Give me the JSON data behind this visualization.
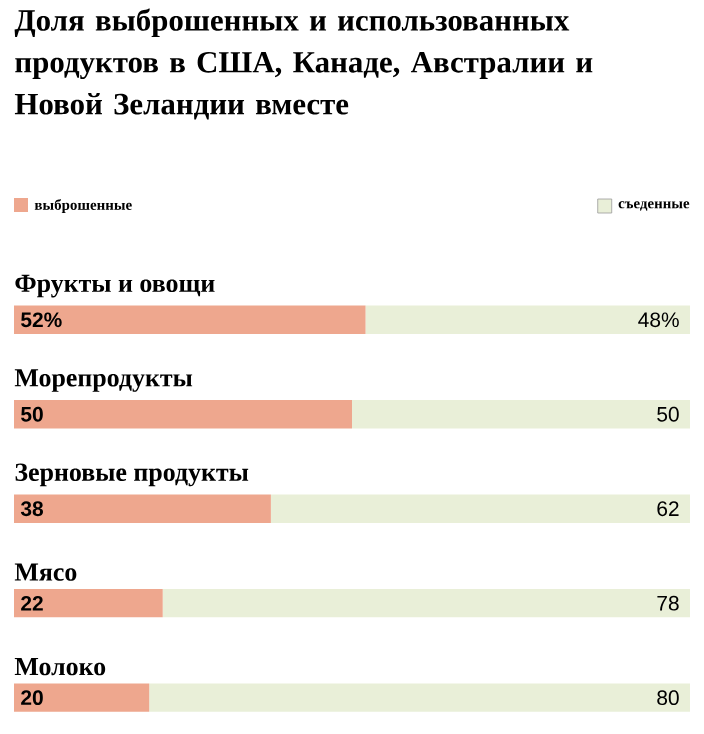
{
  "chart_data": {
    "type": "bar",
    "orientation": "horizontal",
    "stacked": true,
    "title": "Доля выброшенных и использованных продуктов в США, Канаде, Австралии и Новой Зеландии вместе",
    "legend": "top",
    "categories": [
      "Фрукты и овощи",
      "Морепродукты",
      "Зерновые продукты",
      "Мясо",
      "Молоко"
    ],
    "series": [
      {
        "name": "выброшенные",
        "color": "#eea78e",
        "values": [
          52,
          50,
          38,
          22,
          20
        ],
        "value_labels": [
          "52%",
          "50",
          "38",
          "22",
          "20"
        ]
      },
      {
        "name": "съеденные",
        "color": "#e9efd8",
        "values": [
          48,
          50,
          62,
          78,
          80
        ],
        "value_labels": [
          "48%",
          "50",
          "62",
          "78",
          "80"
        ]
      }
    ]
  }
}
